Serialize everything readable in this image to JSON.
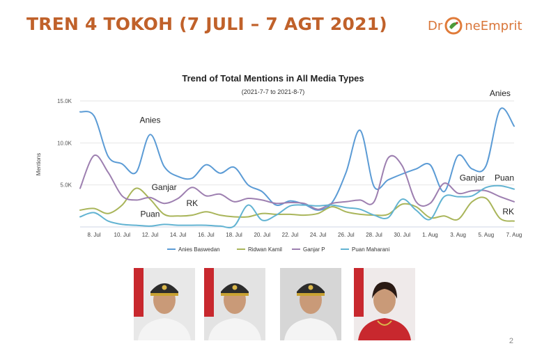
{
  "slide": {
    "title": "TREN 4 TOKOH (7 JULI – 7 AGT 2021)",
    "page_number": "2"
  },
  "logo": {
    "text_before": "Dr",
    "text_after": "neEmprit",
    "brand_color": "#e07b39"
  },
  "colors": {
    "title": "#c0612a",
    "anies": "#5b9bd5",
    "ridwan": "#a9b55a",
    "ganjar": "#9d7fb0",
    "puan": "#62b3d2"
  },
  "chart_data": {
    "type": "line",
    "title": "Trend of Total Mentions in All Media Types",
    "subtitle": "(2021-7-7 to 2021-8-7)",
    "ylabel": "Mentions",
    "ylim": [
      0,
      15000
    ],
    "yticks": [
      {
        "value": 5000,
        "label": "5.0K"
      },
      {
        "value": 10000,
        "label": "10.0K"
      },
      {
        "value": 15000,
        "label": "15.0K"
      }
    ],
    "x": [
      "2021-07-07",
      "2021-07-08",
      "2021-07-09",
      "2021-07-10",
      "2021-07-11",
      "2021-07-12",
      "2021-07-13",
      "2021-07-14",
      "2021-07-15",
      "2021-07-16",
      "2021-07-17",
      "2021-07-18",
      "2021-07-19",
      "2021-07-20",
      "2021-07-21",
      "2021-07-22",
      "2021-07-23",
      "2021-07-24",
      "2021-07-25",
      "2021-07-26",
      "2021-07-27",
      "2021-07-28",
      "2021-07-29",
      "2021-07-30",
      "2021-07-31",
      "2021-08-01",
      "2021-08-02",
      "2021-08-03",
      "2021-08-04",
      "2021-08-05",
      "2021-08-06",
      "2021-08-07"
    ],
    "xticks": [
      {
        "x": "2021-07-08",
        "label": "8. Jul"
      },
      {
        "x": "2021-07-10",
        "label": "10. Jul"
      },
      {
        "x": "2021-07-12",
        "label": "12. Jul"
      },
      {
        "x": "2021-07-14",
        "label": "14. Jul"
      },
      {
        "x": "2021-07-16",
        "label": "16. Jul"
      },
      {
        "x": "2021-07-18",
        "label": "18. Jul"
      },
      {
        "x": "2021-07-20",
        "label": "20. Jul"
      },
      {
        "x": "2021-07-22",
        "label": "22. Jul"
      },
      {
        "x": "2021-07-24",
        "label": "24. Jul"
      },
      {
        "x": "2021-07-26",
        "label": "26. Jul"
      },
      {
        "x": "2021-07-28",
        "label": "28. Jul"
      },
      {
        "x": "2021-07-30",
        "label": "30. Jul"
      },
      {
        "x": "2021-08-01",
        "label": "1. Aug"
      },
      {
        "x": "2021-08-03",
        "label": "3. Aug"
      },
      {
        "x": "2021-08-05",
        "label": "5. Aug"
      },
      {
        "x": "2021-08-07",
        "label": "7. Aug"
      }
    ],
    "grid": true,
    "legend_position": "bottom",
    "series": [
      {
        "name": "Anies Baswedan",
        "color": "#5b9bd5",
        "values": [
          13700,
          13200,
          8400,
          7500,
          6500,
          11000,
          7200,
          6000,
          5800,
          7400,
          6400,
          7100,
          5000,
          4200,
          2600,
          3100,
          2700,
          2000,
          2900,
          6500,
          11500,
          4800,
          5600,
          6300,
          6900,
          7400,
          4200,
          8500,
          6900,
          7300,
          14000,
          12000
        ]
      },
      {
        "name": "Ridwan Kamil",
        "color": "#a9b55a",
        "values": [
          2000,
          2200,
          1600,
          2600,
          4600,
          3300,
          1500,
          1300,
          1400,
          1800,
          1400,
          1200,
          1200,
          1600,
          1500,
          1500,
          1400,
          1600,
          2400,
          1800,
          1500,
          1400,
          1500,
          2700,
          2400,
          1100,
          1300,
          900,
          3000,
          3400,
          1000,
          700
        ]
      },
      {
        "name": "Ganjar P",
        "color": "#9d7fb0",
        "values": [
          4600,
          8500,
          6500,
          3700,
          3200,
          3500,
          2800,
          3400,
          4700,
          3700,
          3900,
          3000,
          3400,
          3200,
          2800,
          2900,
          2800,
          2100,
          2800,
          3000,
          3200,
          3000,
          8200,
          7300,
          3000,
          2800,
          5200,
          4000,
          4300,
          4300,
          3600,
          3000
        ]
      },
      {
        "name": "Puan Maharani",
        "color": "#62b3d2",
        "values": [
          1200,
          1700,
          700,
          300,
          200,
          100,
          300,
          200,
          200,
          200,
          100,
          100,
          2600,
          800,
          1400,
          2500,
          2600,
          2500,
          2600,
          2300,
          2100,
          1400,
          1100,
          3300,
          2000,
          900,
          3600,
          3600,
          3700,
          4700,
          4900,
          4500
        ]
      }
    ],
    "annotations": [
      {
        "text": "Anies",
        "x": "2021-07-12",
        "y": 12400
      },
      {
        "text": "Anies",
        "x": "2021-08-06",
        "y": 15600
      },
      {
        "text": "Ganjar",
        "x": "2021-07-13",
        "y": 4400
      },
      {
        "text": "Ganjar",
        "x": "2021-08-04",
        "y": 5500
      },
      {
        "text": "RK",
        "x": "2021-07-15",
        "y": 2500
      },
      {
        "text": "RK",
        "x": "2021-08-07",
        "y": 1500
      },
      {
        "text": "Puan",
        "x": "2021-07-12",
        "y": 1200
      },
      {
        "text": "Puan",
        "x": "2021-08-07",
        "y": 5500
      }
    ]
  },
  "photos": [
    {
      "icon": "person-photo-icon",
      "backdrop": "#e8e8e8",
      "attire": "#f4f4f4",
      "cap": "#2c2c2c"
    },
    {
      "icon": "person-photo-icon",
      "backdrop": "#e3e3e3",
      "attire": "#f4f4f4",
      "cap": "#2c2c2c"
    },
    {
      "icon": "person-photo-icon",
      "backdrop": "#d6d6d6",
      "attire": "#f4f4f4",
      "cap": "#2c2c2c"
    },
    {
      "icon": "person-photo-icon",
      "backdrop": "#efeaea",
      "attire": "#c8282e",
      "cap": "none"
    }
  ]
}
